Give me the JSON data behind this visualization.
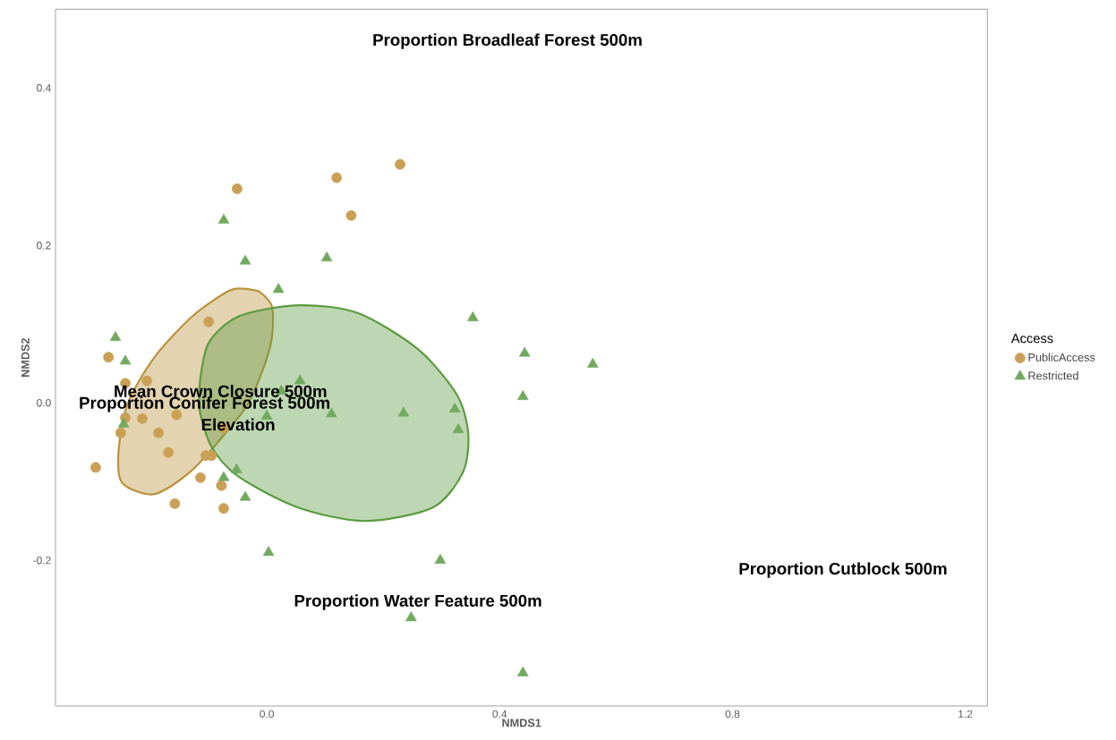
{
  "chart_data": {
    "type": "scatter",
    "xlabel": "NMDS1",
    "ylabel": "NMDS2",
    "legend_title": "Access",
    "legend": "right",
    "grid": false,
    "xlim": [
      -0.363,
      1.238
    ],
    "ylim": [
      -0.385,
      0.5
    ],
    "xticks": [
      {
        "value": 0,
        "label": "0.0"
      },
      {
        "value": 0.4,
        "label": "0.4"
      },
      {
        "value": 0.8,
        "label": "0.8"
      },
      {
        "value": 1.2,
        "label": "1.2"
      }
    ],
    "yticks": [
      {
        "value": -0.2,
        "label": "-0.2"
      },
      {
        "value": 0,
        "label": "0.0"
      },
      {
        "value": 0.2,
        "label": "0.2"
      },
      {
        "value": 0.4,
        "label": "0.4"
      }
    ],
    "series": [
      {
        "type": "area",
        "color": "#b8923c",
        "x": [
          -0.014,
          0.009,
          0.006,
          -0.029,
          -0.075,
          -0.132,
          -0.194,
          -0.248,
          -0.255,
          -0.24,
          -0.194,
          -0.128,
          -0.066,
          -0.04,
          -0.014
        ],
        "values": [
          0.142,
          0.122,
          0.072,
          0.003,
          -0.042,
          -0.088,
          -0.116,
          -0.102,
          -0.065,
          -0.003,
          0.057,
          0.11,
          0.142,
          0.145,
          0.142
        ]
      },
      {
        "type": "area",
        "color": "#5a9a40",
        "x": [
          -0.115,
          -0.1,
          -0.048,
          0.054,
          0.157,
          0.26,
          0.326,
          0.346,
          0.337,
          0.285,
          0.168,
          0.054,
          -0.048,
          -0.094,
          -0.115,
          -0.115
        ],
        "values": [
          0.026,
          0.076,
          0.11,
          0.124,
          0.114,
          0.068,
          0.011,
          -0.038,
          -0.088,
          -0.133,
          -0.15,
          -0.133,
          -0.094,
          -0.057,
          -0.011,
          0.026
        ]
      },
      {
        "name": "PublicAccess",
        "marker": "circle",
        "color": "#c9a055",
        "x": [
          0.229,
          0.12,
          -0.051,
          0.145,
          -0.1,
          -0.272,
          -0.243,
          -0.206,
          -0.243,
          -0.214,
          -0.155,
          -0.186,
          -0.251,
          -0.169,
          -0.105,
          -0.095,
          -0.294,
          -0.114,
          -0.078,
          -0.158,
          -0.074,
          -0.074
        ],
        "values": [
          0.303,
          0.286,
          0.272,
          0.238,
          0.103,
          0.058,
          0.025,
          0.028,
          -0.019,
          -0.02,
          -0.015,
          -0.038,
          -0.038,
          -0.063,
          -0.067,
          -0.067,
          -0.082,
          -0.095,
          -0.105,
          -0.128,
          -0.134,
          -0.032
        ]
      },
      {
        "name": "Restricted",
        "marker": "triangle",
        "color": "#72a95f",
        "x": [
          -0.074,
          -0.037,
          0.103,
          0.02,
          0.354,
          -0.26,
          -0.243,
          0.443,
          0.56,
          0.44,
          0.057,
          0.025,
          0.0,
          0.111,
          0.235,
          0.323,
          0.329,
          -0.246,
          -0.074,
          -0.052,
          -0.037,
          0.003,
          0.298,
          0.248,
          0.44
        ],
        "values": [
          0.232,
          0.18,
          0.184,
          0.144,
          0.108,
          0.083,
          0.053,
          0.063,
          0.049,
          0.008,
          0.028,
          0.015,
          -0.017,
          -0.014,
          -0.013,
          -0.008,
          -0.034,
          -0.027,
          -0.095,
          -0.085,
          -0.12,
          -0.19,
          -0.2,
          -0.273,
          -0.343
        ]
      }
    ],
    "annotations": [
      "Proportion Broadleaf Forest 500m",
      "Mean Crown Closure 500m",
      "Proportion Conifer Forest 500m",
      "Elevation",
      "Proportion Cutblock 500m",
      "Proportion Water Feature 500m"
    ]
  }
}
